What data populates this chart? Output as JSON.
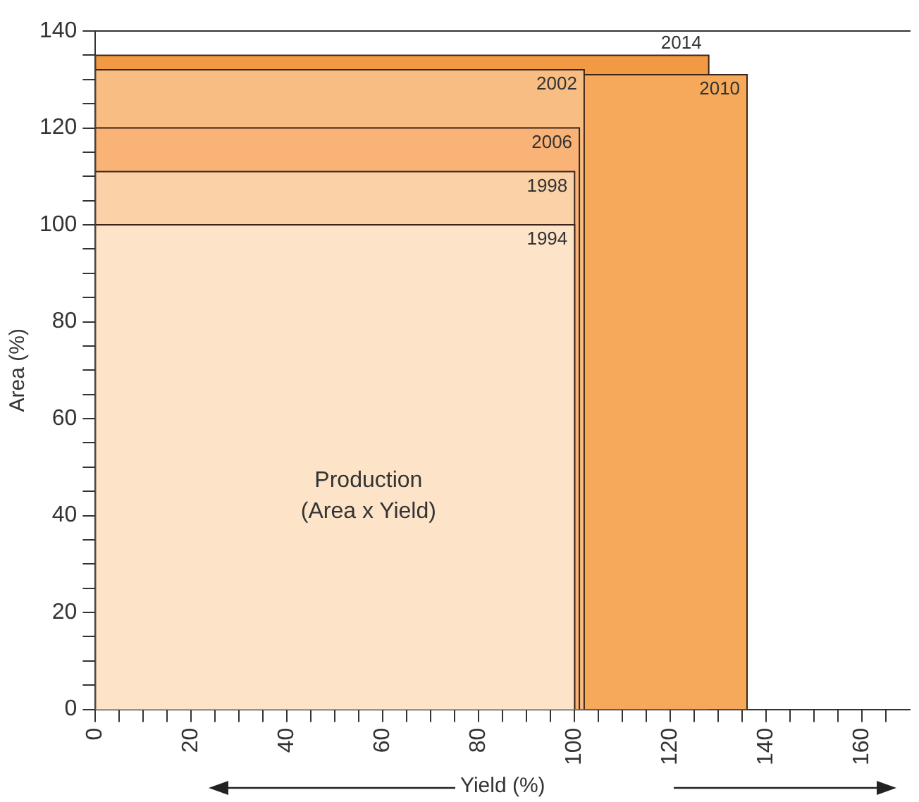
{
  "chart_data": {
    "type": "area",
    "xlabel": "Yield (%)",
    "ylabel": "Area (%)",
    "xlim": [
      0,
      170
    ],
    "ylim": [
      0,
      140
    ],
    "xticks": [
      0,
      {
        "value": 5,
        "label": null
      },
      {
        "value": 10,
        "label": null
      },
      {
        "value": 15,
        "label": null
      },
      20,
      {
        "value": 25,
        "label": null
      },
      {
        "value": 30,
        "label": null
      },
      {
        "value": 35,
        "label": null
      },
      40,
      {
        "value": 45,
        "label": null
      },
      {
        "value": 50,
        "label": null
      },
      {
        "value": 55,
        "label": null
      },
      60,
      {
        "value": 65,
        "label": null
      },
      {
        "value": 70,
        "label": null
      },
      {
        "value": 75,
        "label": null
      },
      80,
      {
        "value": 85,
        "label": null
      },
      {
        "value": 90,
        "label": null
      },
      {
        "value": 95,
        "label": null
      },
      100,
      {
        "value": 105,
        "label": null
      },
      {
        "value": 110,
        "label": null
      },
      {
        "value": 115,
        "label": null
      },
      120,
      {
        "value": 125,
        "label": null
      },
      {
        "value": 130,
        "label": null
      },
      {
        "value": 135,
        "label": null
      },
      140,
      {
        "value": 145,
        "label": null
      },
      {
        "value": 150,
        "label": null
      },
      {
        "value": 155,
        "label": null
      },
      160,
      {
        "value": 165,
        "label": null
      }
    ],
    "yticks": [
      0,
      {
        "value": 5,
        "label": null
      },
      {
        "value": 10,
        "label": null
      },
      {
        "value": 15,
        "label": null
      },
      20,
      {
        "value": 25,
        "label": null
      },
      {
        "value": 30,
        "label": null
      },
      {
        "value": 35,
        "label": null
      },
      40,
      {
        "value": 45,
        "label": null
      },
      {
        "value": 50,
        "label": null
      },
      {
        "value": 55,
        "label": null
      },
      60,
      {
        "value": 65,
        "label": null
      },
      {
        "value": 70,
        "label": null
      },
      {
        "value": 75,
        "label": null
      },
      80,
      {
        "value": 85,
        "label": null
      },
      {
        "value": 90,
        "label": null
      },
      {
        "value": 95,
        "label": null
      },
      100,
      {
        "value": 105,
        "label": null
      },
      {
        "value": 110,
        "label": null
      },
      {
        "value": 115,
        "label": null
      },
      120,
      {
        "value": 125,
        "label": null
      },
      {
        "value": 130,
        "label": null
      },
      {
        "value": 135,
        "label": null
      },
      140
    ],
    "series": [
      {
        "name": "1994",
        "color": "#fde3c8",
        "x": [
          0,
          100
        ],
        "values": [
          100,
          100
        ]
      },
      {
        "name": "1998",
        "color": "#fbd2a8",
        "x": [
          0,
          100
        ],
        "values": [
          111,
          111
        ]
      },
      {
        "name": "2006",
        "color": "#f9b377",
        "x": [
          0,
          101
        ],
        "values": [
          120,
          120
        ]
      },
      {
        "name": "2002",
        "color": "#f8bd82",
        "x": [
          0,
          102
        ],
        "values": [
          132,
          132
        ]
      },
      {
        "name": "2010",
        "color": "#f6a95a",
        "x": [
          0,
          136
        ],
        "values": [
          131,
          131
        ]
      },
      {
        "name": "2014",
        "color": "#f29a43",
        "x": [
          0,
          128
        ],
        "values": [
          135,
          135
        ]
      }
    ],
    "annotations": [
      "Production\n(Area x Yield)"
    ],
    "grid": false,
    "legend": false
  }
}
